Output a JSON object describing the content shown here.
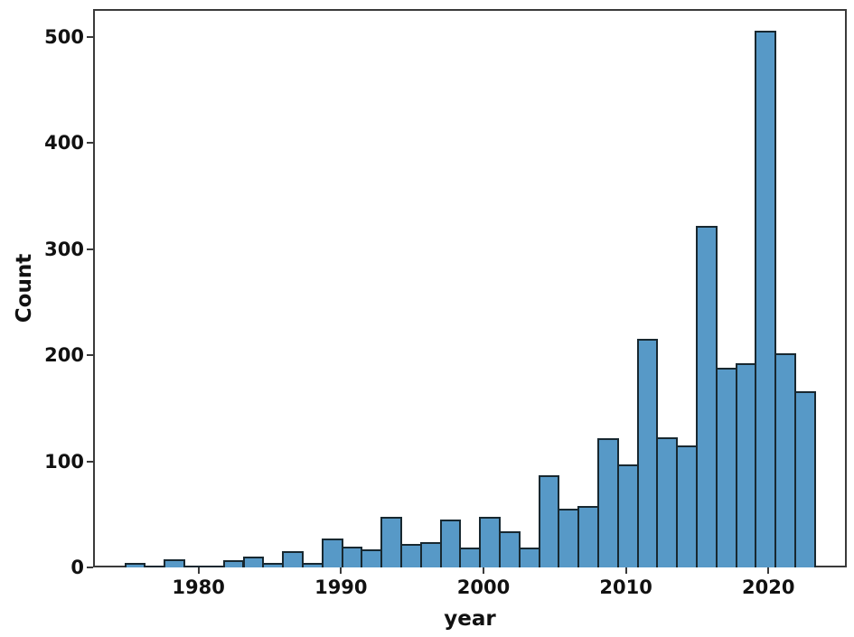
{
  "figure": {
    "background": "#ffffff",
    "bar_fill": "#5799C7",
    "bar_edge": "#182830",
    "spine_color": "#3a3a3a",
    "text_color": "#111111"
  },
  "chart_data": {
    "type": "bar",
    "subtype": "histogram",
    "title": "",
    "xlabel": "year",
    "ylabel": "Count",
    "legend": null,
    "grid": false,
    "x_ticks": [
      1980,
      1990,
      2000,
      2010,
      2020
    ],
    "y_ticks": [
      0,
      100,
      200,
      300,
      400,
      500
    ],
    "xlim": [
      1972.6,
      2025.5
    ],
    "ylim": [
      0,
      526
    ],
    "bin_start_year": 1974.8,
    "bin_width_years": 1.3829,
    "values": [
      4,
      1,
      8,
      2,
      1,
      7,
      10,
      4,
      15,
      4,
      27,
      20,
      17,
      48,
      22,
      24,
      45,
      19,
      48,
      34,
      19,
      87,
      55,
      58,
      122,
      97,
      215,
      123,
      115,
      322,
      188,
      192,
      506,
      202,
      166
    ]
  }
}
